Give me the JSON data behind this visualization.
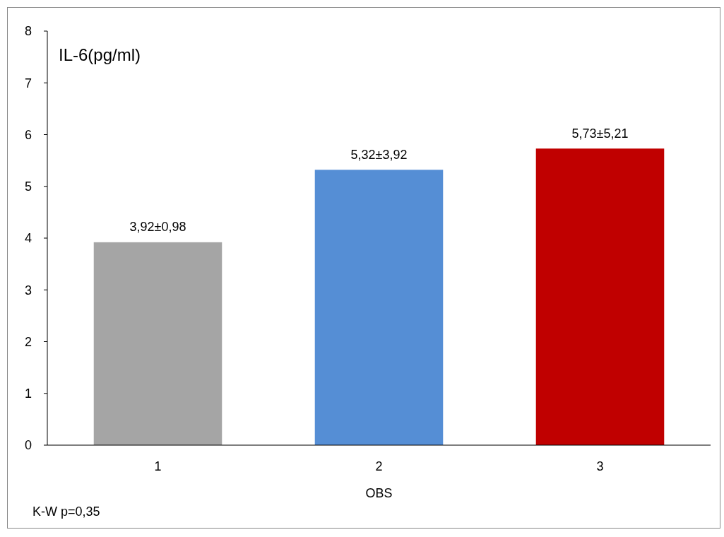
{
  "chart_data": {
    "type": "bar",
    "ylabel": "IL-6(pg/ml)",
    "xlabel": "OBS",
    "categories": [
      "1",
      "2",
      "3"
    ],
    "values": [
      3.92,
      5.32,
      5.73
    ],
    "colors": [
      "#a5a5a5",
      "#558ed5",
      "#c00000"
    ],
    "value_labels": [
      "3,92±0,98",
      "5,32±3,92",
      "5,73±5,21"
    ],
    "ylim": [
      0,
      8
    ],
    "yticks": [
      0,
      1,
      2,
      3,
      4,
      5,
      6,
      7,
      8
    ],
    "annotations": [
      "K-W  p=0,35"
    ]
  }
}
